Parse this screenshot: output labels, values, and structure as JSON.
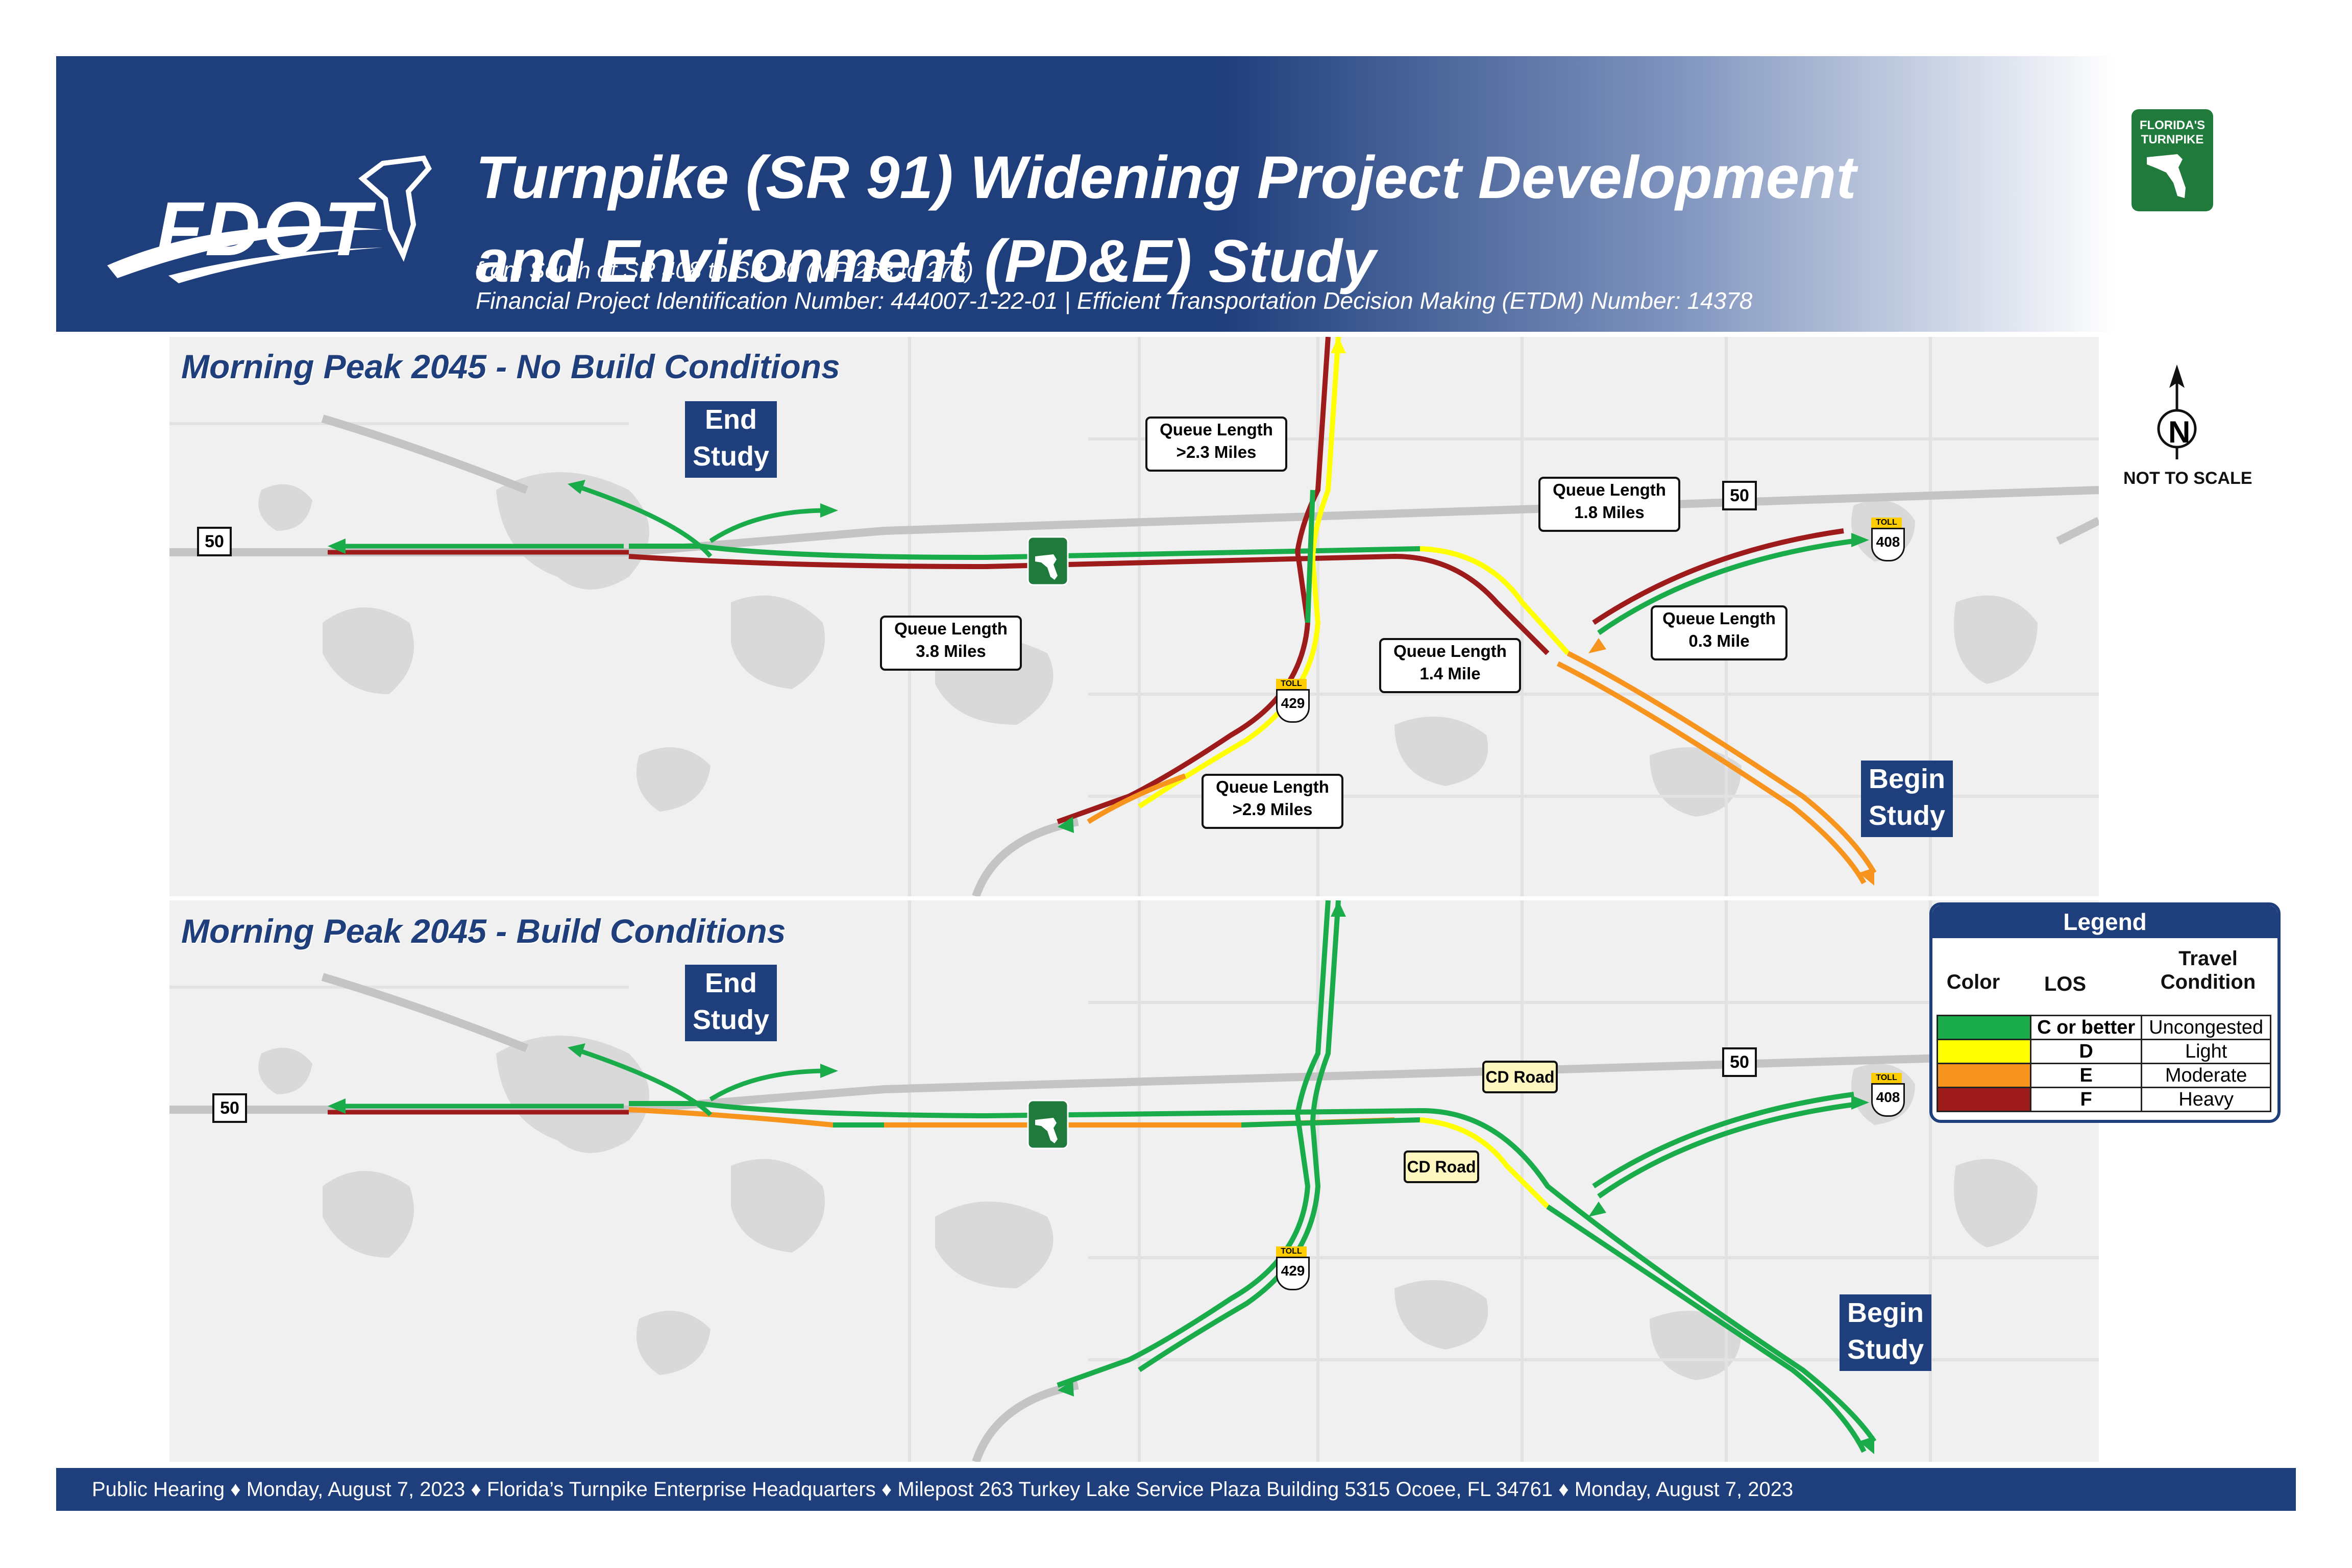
{
  "header": {
    "logo": "FDOT",
    "title_line1": "Turnpike (SR 91) Widening Project Development",
    "title_line2": "and Environment (PD&E) Study",
    "subtitle_line1": "from South of SR 408 to SR 50 (MP 263 to 273)",
    "subtitle_line2": "Financial Project Identification Number: 444007-1-22-01 |  Efficient Transportation Decision Making (ETDM) Number: 14378",
    "turnpike_logo": "FLORIDA'S TURNPIKE"
  },
  "colors": {
    "navy": "#1f3e7c",
    "los_c": "#1aab4b",
    "los_d": "#ffff00",
    "los_e": "#f7941d",
    "los_f": "#9e1b1b",
    "road_gray": "#c4c4c4"
  },
  "north_arrow": {
    "letter": "N",
    "label": "NOT TO SCALE",
    "icon": "north-arrow-icon"
  },
  "maps": [
    {
      "title": "Morning Peak 2045 - No Build Conditions",
      "end_study": [
        "End",
        "Study"
      ],
      "begin_study": [
        "Begin",
        "Study"
      ],
      "shields": {
        "sr50_west": "50",
        "sr50_east": "50",
        "sr429": "429",
        "sr408": "408",
        "toll": "TOLL"
      },
      "callouts": [
        {
          "line1": "Queue Length",
          "line2": ">2.3 Miles"
        },
        {
          "line1": "Queue Length",
          "line2": "1.8 Miles"
        },
        {
          "line1": "Queue Length",
          "line2": "3.8 Miles"
        },
        {
          "line1": "Queue Length",
          "line2": "1.4 Mile"
        },
        {
          "line1": "Queue Length",
          "line2": "0.3 Mile"
        },
        {
          "line1": "Queue Length",
          "line2": ">2.9 Miles"
        }
      ]
    },
    {
      "title": "Morning Peak 2045 - Build Conditions",
      "end_study": [
        "End",
        "Study"
      ],
      "begin_study": [
        "Begin",
        "Study"
      ],
      "shields": {
        "sr50_west": "50",
        "sr50_east": "50",
        "sr429": "429",
        "sr408": "408",
        "toll": "TOLL"
      },
      "callouts": [
        {
          "line1": "CD Road"
        },
        {
          "line1": "CD Road"
        }
      ]
    }
  ],
  "legend": {
    "title": "Legend",
    "col_color": "Color",
    "col_los": "LOS",
    "col_travel_1": "Travel",
    "col_travel_2": "Condition",
    "rows": [
      {
        "los": "C or better",
        "condition": "Uncongested",
        "color": "#1aab4b"
      },
      {
        "los": "D",
        "condition": "Light",
        "color": "#ffff00"
      },
      {
        "los": "E",
        "condition": "Moderate",
        "color": "#f7941d"
      },
      {
        "los": "F",
        "condition": "Heavy",
        "color": "#9e1b1b"
      }
    ]
  },
  "footer": "Public Hearing ♦ Monday, August 7, 2023 ♦ Florida’s Turnpike Enterprise Headquarters ♦  Milepost 263 Turkey Lake Service Plaza Building 5315 Ocoee, FL 34761 ♦ Monday, August 7, 2023"
}
